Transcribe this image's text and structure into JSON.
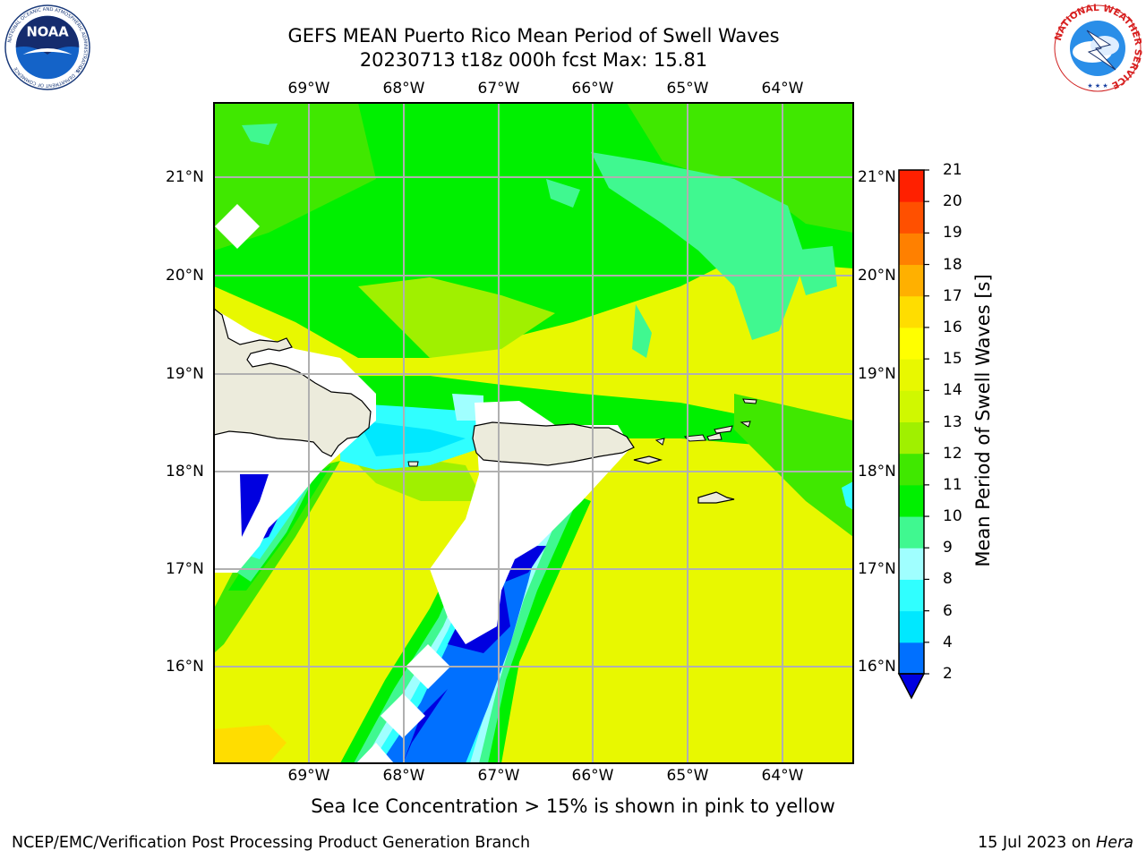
{
  "title_line1": "GEFS MEAN Puerto Rico Mean Period of Swell Waves",
  "title_line2": "20230713 t18z 000h fcst   Max: 15.81",
  "logos": {
    "noaa": {
      "text": "NOAA",
      "ring_text": "NATIONAL OCEANIC AND ATMOSPHERIC ADMINISTRATION",
      "bottom_text": "U.S. DEPARTMENT OF COMMERCE"
    },
    "nws": {
      "ring_text": "NATIONAL WEATHER SERVICE"
    }
  },
  "map": {
    "lon_labels": [
      "69°W",
      "68°W",
      "67°W",
      "66°W",
      "65°W",
      "64°W"
    ],
    "lat_labels": [
      "21°N",
      "20°N",
      "19°N",
      "18°N",
      "17°N",
      "16°N"
    ],
    "land_color": "#ecebdc",
    "grid_color": "#b0b0b0"
  },
  "colorbar": {
    "label": "Mean Period of Swell Waves [s]",
    "tick_labels": [
      "2",
      "4",
      "6",
      "8",
      "9",
      "10",
      "11",
      "12",
      "13",
      "14",
      "15",
      "16",
      "17",
      "18",
      "19",
      "20",
      "21"
    ],
    "colors": [
      "#0070ff",
      "#00e8ff",
      "#30ffff",
      "#a0ffff",
      "#40f890",
      "#00f000",
      "#40e800",
      "#a0f000",
      "#d0f800",
      "#e8f800",
      "#ffff00",
      "#ffdd00",
      "#ffb000",
      "#ff8000",
      "#ff5000",
      "#ff2000",
      "#ff0000"
    ],
    "under_color": "#0000e0",
    "extend": "min"
  },
  "sea_ice_note": "Sea Ice Concentration > 15% is shown in pink to yellow",
  "footer": {
    "left": "NCEP/EMC/Verification Post Processing Product Generation Branch",
    "right_prefix": "15 Jul 2023 on ",
    "right_machine": "Hera"
  }
}
